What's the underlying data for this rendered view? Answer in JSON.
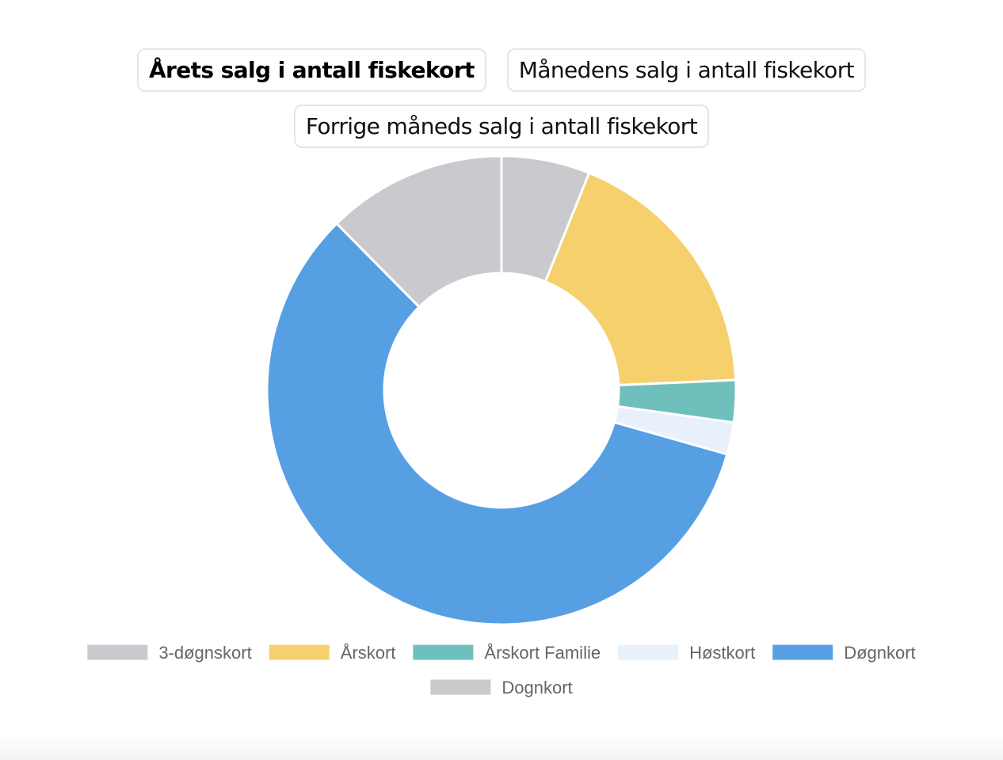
{
  "tabs": [
    {
      "label": "Årets salg i antall fiskekort",
      "active": true
    },
    {
      "label": "Månedens salg i antall fiskekort",
      "active": false
    },
    {
      "label": "Forrige måneds salg i antall fiskekort",
      "active": false
    }
  ],
  "chart_data": {
    "type": "pie",
    "variant": "doughnut",
    "legend": "bottom",
    "categories": [
      "3-døgnskort",
      "Årskort",
      "Årskort Familie",
      "Høstkort",
      "Døgnkort",
      "Dognkort"
    ],
    "values": [
      6.1,
      18.2,
      2.9,
      2.2,
      58.2,
      12.4
    ],
    "colors": [
      "#c9cacd",
      "#f6d06c",
      "#6fbfbd",
      "#e8f0fb",
      "#569fe3",
      "#c9cacd"
    ]
  }
}
